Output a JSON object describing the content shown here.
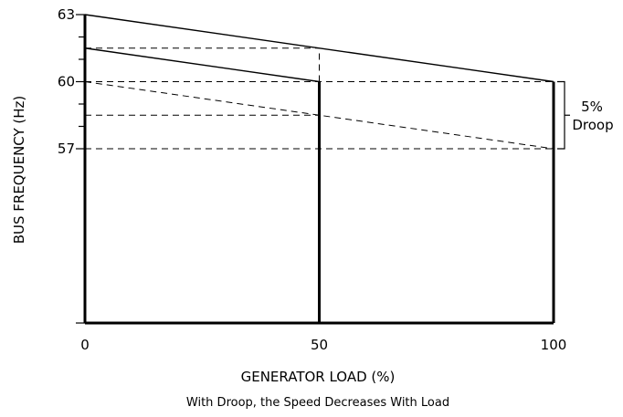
{
  "chart_data": {
    "type": "line",
    "title": "",
    "caption": "With Droop, the Speed Decreases With Load",
    "xlabel": "GENERATOR LOAD (%)",
    "ylabel": "BUS FREQUENCY (Hz)",
    "xlim": [
      0,
      100
    ],
    "y_axis_note": "broken y-axis; labeled range shown 57-63 Hz",
    "x_ticks": [
      {
        "value": 0,
        "label": "0"
      },
      {
        "value": 50,
        "label": "50"
      },
      {
        "value": 100,
        "label": "100"
      }
    ],
    "y_ticks": [
      {
        "value": 63,
        "label": "63"
      },
      {
        "value": 60,
        "label": "60"
      },
      {
        "value": 57,
        "label": "57"
      }
    ],
    "series": [
      {
        "points": [
          [
            0,
            63
          ],
          [
            100,
            60
          ]
        ]
      },
      {
        "points": [
          [
            0,
            61.5
          ],
          [
            50,
            60
          ]
        ]
      },
      {
        "dashed": true,
        "points": [
          [
            0,
            60
          ],
          [
            100,
            57
          ]
        ]
      }
    ],
    "reference_lines": [
      {
        "orientation": "horizontal",
        "value": 61.5,
        "from": 0,
        "to": 50
      },
      {
        "orientation": "horizontal",
        "value": 60,
        "from": 0,
        "to": 100
      },
      {
        "orientation": "horizontal",
        "value": 58.5,
        "from": 0,
        "to": 50
      },
      {
        "orientation": "horizontal",
        "value": 57,
        "from": 0,
        "to": 100
      },
      {
        "orientation": "vertical",
        "value": 50,
        "from": 60,
        "to": 61.5
      }
    ],
    "load_bars": [
      {
        "x": 0
      },
      {
        "x": 50
      },
      {
        "x": 100
      }
    ],
    "annotations": [
      {
        "text": "5%",
        "y_from": 57,
        "y_to": 60
      },
      {
        "text": "Droop"
      }
    ]
  }
}
